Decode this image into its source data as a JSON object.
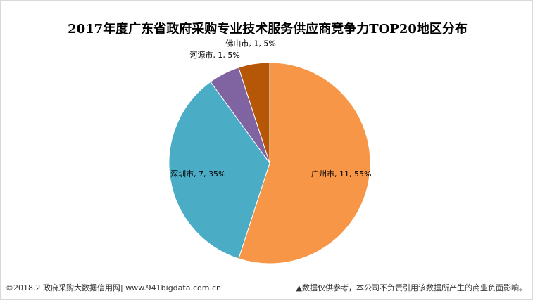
{
  "chart_data": {
    "type": "pie",
    "title": "2017年度广东省政府采购专业技术服务供应商竞争力TOP20地区分布",
    "values": [
      11,
      7,
      1,
      1
    ],
    "value_labels": [
      "广州市, 11, 55%",
      "深圳市, 7, 35%",
      "河源市, 1, 5%",
      "佛山市, 1, 5%"
    ],
    "colors": [
      "#F79646",
      "#4BACC6",
      "#8064A2",
      "#B65708"
    ]
  },
  "footer": {
    "left": "©2018.2 政府采购大数据信用网| www.941bigdata.com.cn",
    "right": "▲数据仅供参考，本公司不负责引用该数据所产生的商业负面影响。"
  }
}
